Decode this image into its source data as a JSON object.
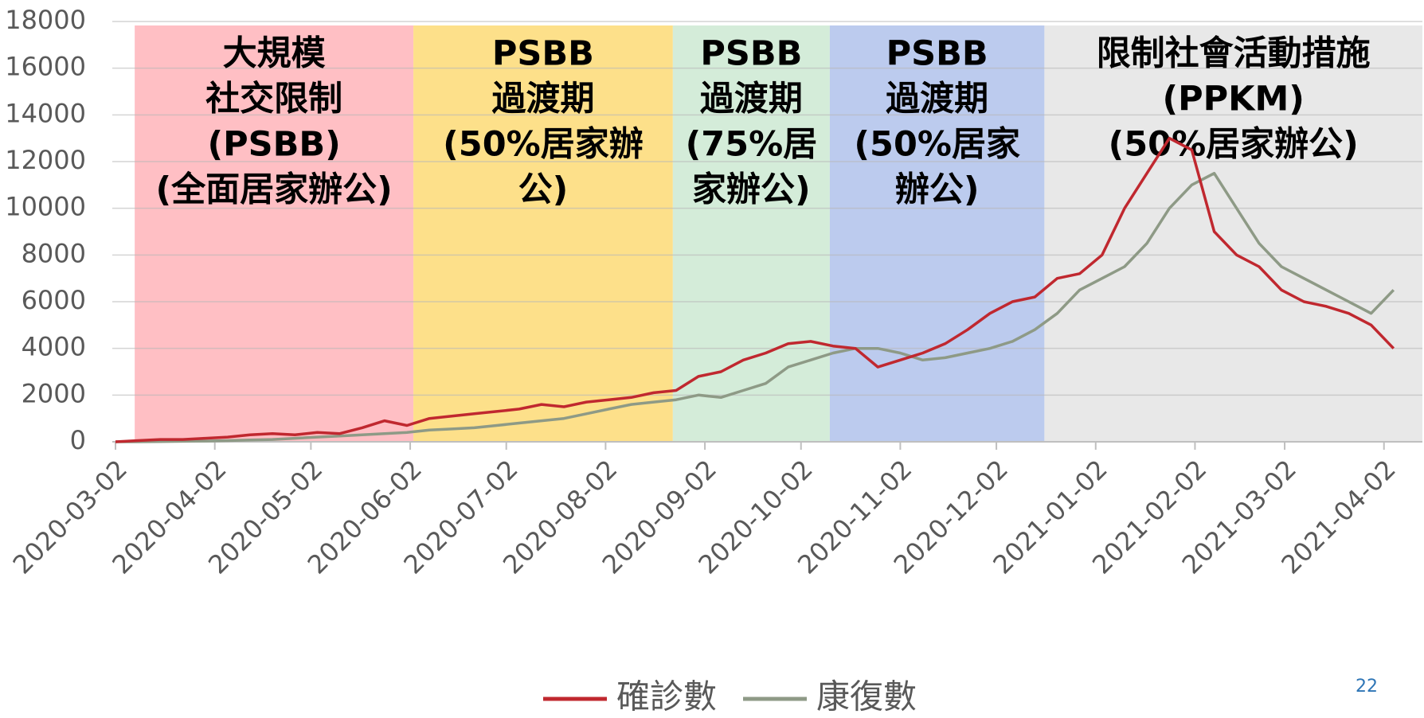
{
  "chart_data": {
    "type": "line",
    "x": [
      "2020-03-02",
      "2020-03-09",
      "2020-03-16",
      "2020-03-23",
      "2020-03-30",
      "2020-04-06",
      "2020-04-13",
      "2020-04-20",
      "2020-04-27",
      "2020-05-04",
      "2020-05-11",
      "2020-05-18",
      "2020-05-25",
      "2020-06-01",
      "2020-06-08",
      "2020-06-15",
      "2020-06-22",
      "2020-06-29",
      "2020-07-06",
      "2020-07-13",
      "2020-07-20",
      "2020-07-27",
      "2020-08-03",
      "2020-08-10",
      "2020-08-17",
      "2020-08-24",
      "2020-08-31",
      "2020-09-07",
      "2020-09-14",
      "2020-09-21",
      "2020-09-28",
      "2020-10-05",
      "2020-10-12",
      "2020-10-19",
      "2020-10-26",
      "2020-11-02",
      "2020-11-09",
      "2020-11-16",
      "2020-11-23",
      "2020-11-30",
      "2020-12-07",
      "2020-12-14",
      "2020-12-21",
      "2020-12-28",
      "2021-01-04",
      "2021-01-11",
      "2021-01-18",
      "2021-01-25",
      "2021-02-01",
      "2021-02-08",
      "2021-02-15",
      "2021-02-22",
      "2021-03-01",
      "2021-03-08",
      "2021-03-15",
      "2021-03-22",
      "2021-03-29",
      "2021-04-05"
    ],
    "series": [
      {
        "name": "確診數",
        "color": "#c0282f",
        "values": [
          0,
          50,
          100,
          100,
          150,
          200,
          300,
          350,
          300,
          400,
          350,
          600,
          900,
          700,
          1000,
          1100,
          1200,
          1300,
          1400,
          1600,
          1500,
          1700,
          1800,
          1900,
          2100,
          2200,
          2800,
          3000,
          3500,
          3800,
          4200,
          4300,
          4100,
          4000,
          3200,
          3500,
          3800,
          4200,
          4800,
          5500,
          6000,
          6200,
          7000,
          7200,
          8000,
          10000,
          11500,
          13000,
          12500,
          9000,
          8000,
          7500,
          6500,
          6000,
          5800,
          5500,
          5000,
          4000
        ]
      },
      {
        "name": "康復數",
        "color": "#8e9a86",
        "values": [
          0,
          0,
          10,
          20,
          30,
          50,
          80,
          100,
          150,
          200,
          250,
          300,
          350,
          400,
          500,
          550,
          600,
          700,
          800,
          900,
          1000,
          1200,
          1400,
          1600,
          1700,
          1800,
          2000,
          1900,
          2200,
          2500,
          3200,
          3500,
          3800,
          4000,
          4000,
          3800,
          3500,
          3600,
          3800,
          4000,
          4300,
          4800,
          5500,
          6500,
          7000,
          7500,
          8500,
          10000,
          11000,
          11500,
          10000,
          8500,
          7500,
          7000,
          6500,
          6000,
          5500,
          6500
        ]
      }
    ],
    "xlim": [
      "2020-03-01",
      "2021-04-14"
    ],
    "xticks": [
      "2020-03-02",
      "2020-04-02",
      "2020-05-02",
      "2020-06-02",
      "2020-07-02",
      "2020-08-02",
      "2020-09-02",
      "2020-10-02",
      "2020-11-02",
      "2020-12-02",
      "2021-01-02",
      "2021-02-02",
      "2021-03-02",
      "2021-04-02"
    ],
    "ylim": [
      0,
      18000
    ],
    "yticks": [
      0,
      2000,
      4000,
      6000,
      8000,
      10000,
      12000,
      14000,
      16000,
      18000
    ],
    "grid": true,
    "legend": "bottom",
    "periods": [
      {
        "start": "2020-03-08",
        "end": "2020-06-03",
        "color": "#ffbfc4",
        "label": [
          "大規模",
          "社交限制",
          "(PSBB)",
          "(全面居家辦公)"
        ]
      },
      {
        "start": "2020-06-03",
        "end": "2020-08-23",
        "color": "#fde08a",
        "label": [
          "PSBB",
          "過渡期",
          "(50%居家辦",
          "公)"
        ]
      },
      {
        "start": "2020-08-23",
        "end": "2020-10-11",
        "color": "#d4ecd9",
        "label": [
          "PSBB",
          "過渡期",
          "(75%居",
          "家辦公)"
        ]
      },
      {
        "start": "2020-10-11",
        "end": "2020-12-17",
        "color": "#bccbee",
        "label": [
          "PSBB",
          "過渡期",
          "(50%居家",
          "辦公)"
        ]
      },
      {
        "start": "2020-12-17",
        "end": "2021-04-14",
        "color": "#e8e8e8",
        "label": [
          "限制社會活動措施",
          "(PPKM)",
          "(50%居家辦公)"
        ]
      }
    ]
  },
  "page_number": "22"
}
